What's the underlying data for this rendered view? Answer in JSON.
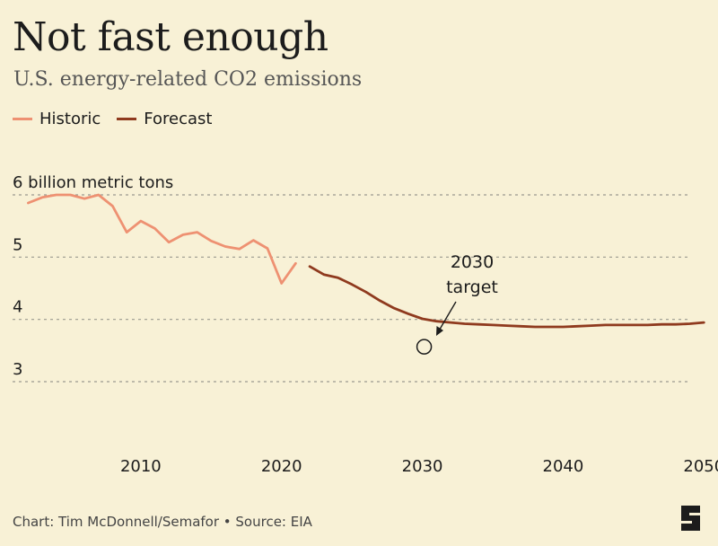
{
  "header": {
    "title": "Not fast enough",
    "subtitle": "U.S. energy-related CO2 emissions"
  },
  "footer": {
    "credit": "Chart: Tim McDonnell/Semafor • Source: EIA"
  },
  "logo": {
    "icon": "semafor-s-logo-icon"
  },
  "colors": {
    "historic": "#ee9172",
    "forecast": "#8f3a1e",
    "grid": "#9a9a8f",
    "background": "#f8f1d6"
  },
  "chart_data": {
    "type": "line",
    "title": "Not fast enough",
    "subtitle": "U.S. energy-related CO2 emissions",
    "unit_label": "6 billion metric tons",
    "xlim": [
      2000,
      2051
    ],
    "ylim": [
      2.0,
      6.6
    ],
    "y_ticks": [
      {
        "value": 6,
        "label": "6 billion metric tons"
      },
      {
        "value": 5,
        "label": "5"
      },
      {
        "value": 4,
        "label": "4"
      },
      {
        "value": 3,
        "label": "3"
      }
    ],
    "x_ticks": [
      {
        "value": 2010,
        "label": "2010"
      },
      {
        "value": 2020,
        "label": "2020"
      },
      {
        "value": 2030,
        "label": "2030"
      },
      {
        "value": 2040,
        "label": "2040"
      },
      {
        "value": 2050,
        "label": "2050"
      }
    ],
    "grid": "horizontal dashed",
    "legend_position": "top-left",
    "series": [
      {
        "name": "Historic",
        "x": [
          2002,
          2003,
          2004,
          2005,
          2006,
          2007,
          2008,
          2009,
          2010,
          2011,
          2012,
          2013,
          2014,
          2015,
          2016,
          2017,
          2018,
          2019,
          2020,
          2021
        ],
        "values": [
          5.87,
          5.96,
          6.0,
          6.0,
          5.94,
          6.0,
          5.82,
          5.4,
          5.58,
          5.46,
          5.24,
          5.36,
          5.4,
          5.26,
          5.17,
          5.13,
          5.27,
          5.14,
          4.58,
          4.9
        ]
      },
      {
        "name": "Forecast",
        "x": [
          2022,
          2023,
          2024,
          2025,
          2026,
          2027,
          2028,
          2029,
          2030,
          2031,
          2032,
          2033,
          2034,
          2035,
          2036,
          2037,
          2038,
          2039,
          2040,
          2041,
          2042,
          2043,
          2044,
          2045,
          2046,
          2047,
          2048,
          2049,
          2050
        ],
        "values": [
          4.85,
          4.72,
          4.67,
          4.56,
          4.44,
          4.3,
          4.18,
          4.09,
          4.01,
          3.97,
          3.95,
          3.93,
          3.92,
          3.91,
          3.9,
          3.89,
          3.88,
          3.88,
          3.88,
          3.89,
          3.9,
          3.91,
          3.91,
          3.91,
          3.91,
          3.92,
          3.92,
          3.93,
          3.95
        ]
      }
    ],
    "annotations": [
      {
        "label_lines": [
          "2030",
          "target"
        ],
        "x": 2030,
        "y": 3.56,
        "marker": "open-circle"
      }
    ]
  }
}
